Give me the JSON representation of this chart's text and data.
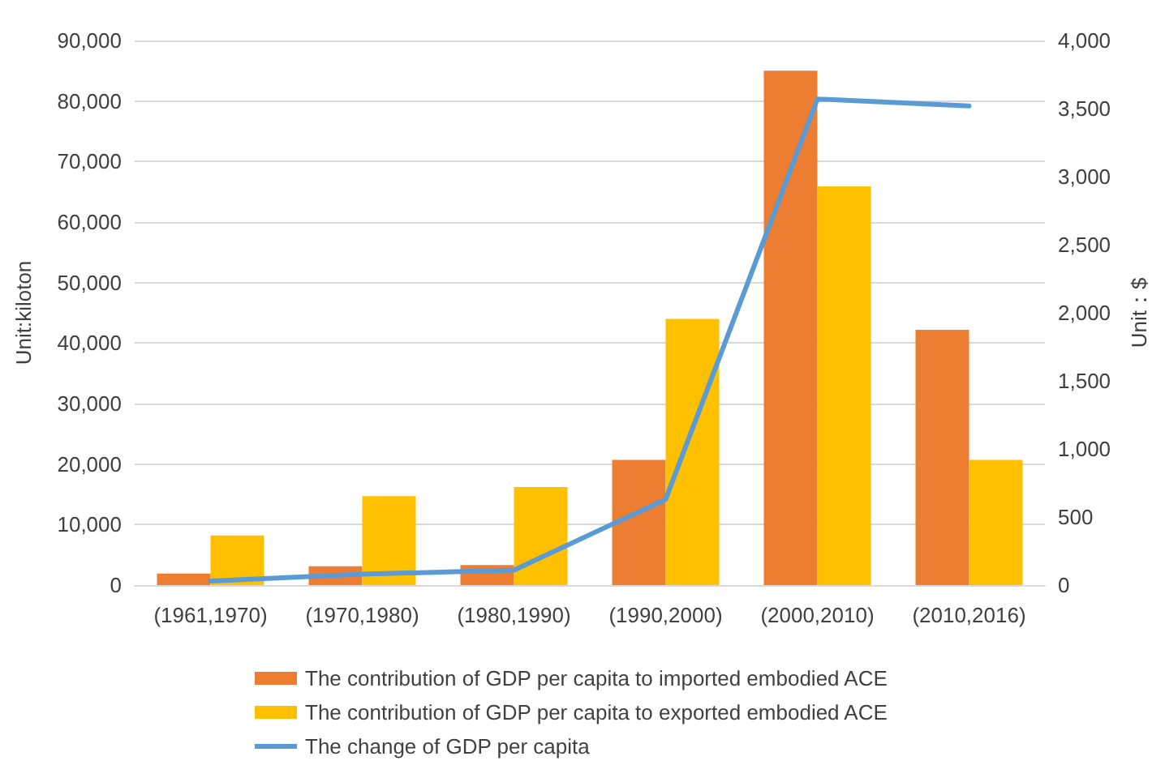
{
  "chart_data": {
    "type": "bar",
    "ylabel": "Unit:kiloton",
    "y2label": "Unit：$",
    "categories": [
      "(1961,1970)",
      "(1970,1980)",
      "(1980,1990)",
      "(1990,2000)",
      "(2000,2010)",
      "(2010,2016)"
    ],
    "series": [
      {
        "name": "The contribution of GDP per capita to imported embodied ACE",
        "color": "#ed7d31",
        "values": [
          1900,
          3100,
          3300,
          20700,
          85000,
          42200
        ]
      },
      {
        "name": "The contribution of GDP per capita to exported embodied ACE",
        "color": "#ffc000",
        "values": [
          8200,
          14700,
          16200,
          44000,
          65900,
          20700
        ]
      },
      {
        "name": "The change of GDP per capita",
        "type": "line",
        "axis": "y2",
        "color": "#5b9bd5",
        "values": [
          30,
          80,
          110,
          630,
          3570,
          3520
        ]
      }
    ],
    "ylim": [
      0,
      90000
    ],
    "yticks": [
      0,
      {
        "value": 10000,
        "label": "10,000"
      },
      {
        "value": 20000,
        "label": "20,000"
      },
      {
        "value": 30000,
        "label": "30,000"
      },
      {
        "value": 40000,
        "label": "40,000"
      },
      {
        "value": 50000,
        "label": "50,000"
      },
      {
        "value": 60000,
        "label": "60,000"
      },
      {
        "value": 70000,
        "label": "70,000"
      },
      {
        "value": 80000,
        "label": "80,000"
      },
      {
        "value": 90000,
        "label": "90,000"
      }
    ],
    "y2lim": [
      0,
      4000
    ],
    "y2ticks": [
      0,
      500,
      {
        "value": 1000,
        "label": "1,000"
      },
      {
        "value": 1500,
        "label": "1,500"
      },
      {
        "value": 2000,
        "label": "2,000"
      },
      {
        "value": 2500,
        "label": "2,500"
      },
      {
        "value": 3000,
        "label": "3,000"
      },
      {
        "value": 3500,
        "label": "3,500"
      },
      {
        "value": 4000,
        "label": "4,000"
      }
    ],
    "grid": "y",
    "legend": "bottom",
    "marker": "none"
  }
}
